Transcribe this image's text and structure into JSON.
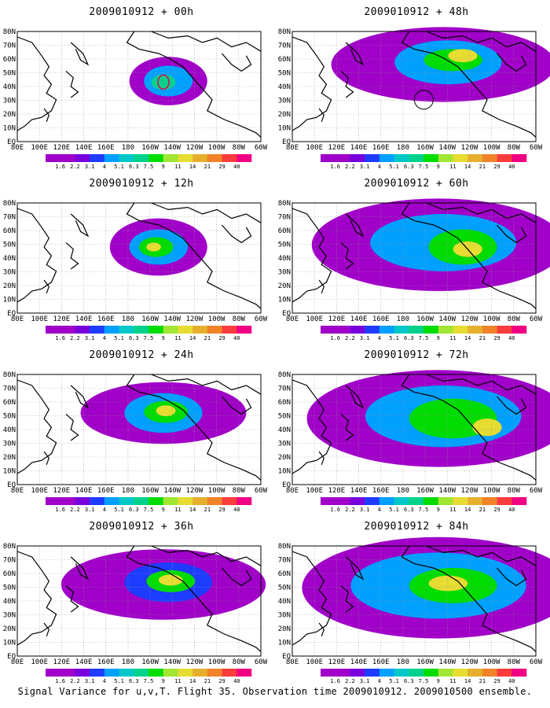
{
  "panels": [
    {
      "title": "2009010912 + 00h"
    },
    {
      "title": "2009010912 + 12h"
    },
    {
      "title": "2009010912 + 24h"
    },
    {
      "title": "2009010912 + 36h"
    },
    {
      "title": "2009010912 + 48h"
    },
    {
      "title": "2009010912 + 60h"
    },
    {
      "title": "2009010912 + 72h"
    },
    {
      "title": "2009010912 + 84h"
    }
  ],
  "lat_labels": [
    "80N",
    "70N",
    "60N",
    "50N",
    "40N",
    "30N",
    "20N",
    "10N",
    "EQ"
  ],
  "lon_labels": [
    "80E",
    "100E",
    "120E",
    "140E",
    "160E",
    "180",
    "160W",
    "140W",
    "120W",
    "100W",
    "80W",
    "60W"
  ],
  "colorbar": {
    "labels": [
      "1.6",
      "2.2",
      "3.1",
      "4",
      "5.1",
      "6.3",
      "7.5",
      "9",
      "11",
      "14",
      "21",
      "29",
      "40"
    ],
    "colors": [
      "#a000c8",
      "#7800dc",
      "#1e3cff",
      "#00a0ff",
      "#00c8c8",
      "#00d28c",
      "#00dc00",
      "#a0e632",
      "#e6dc32",
      "#e6af2d",
      "#f08228",
      "#fa3c3c",
      "#f00082"
    ]
  },
  "caption": "Signal Variance for u,v,T. Flight 35. Observation time 2009010912. 2009010500 ensemble."
}
